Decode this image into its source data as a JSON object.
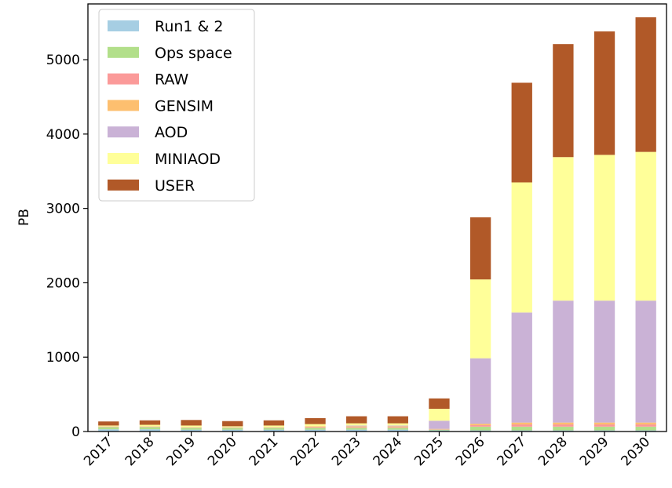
{
  "chart_data": {
    "type": "bar",
    "stacked": true,
    "title": "",
    "xlabel": "",
    "ylabel": "PB",
    "ylim": [
      0,
      5750
    ],
    "yticks": [
      0,
      1000,
      2000,
      3000,
      4000,
      5000
    ],
    "grid": false,
    "legend_position": "top-left",
    "categories": [
      "2017",
      "2018",
      "2019",
      "2020",
      "2021",
      "2022",
      "2023",
      "2024",
      "2025",
      "2026",
      "2027",
      "2028",
      "2029",
      "2030"
    ],
    "series": [
      {
        "name": "Run1 & 2",
        "color": "#a6cee3",
        "values": [
          30,
          30,
          25,
          25,
          25,
          25,
          25,
          25,
          15,
          15,
          15,
          15,
          15,
          15
        ]
      },
      {
        "name": "Ops space",
        "color": "#b2df8a",
        "values": [
          30,
          30,
          25,
          25,
          25,
          25,
          25,
          25,
          10,
          50,
          50,
          50,
          50,
          50
        ]
      },
      {
        "name": "RAW",
        "color": "#fb9a99",
        "values": [
          5,
          5,
          5,
          5,
          5,
          10,
          10,
          10,
          5,
          20,
          30,
          30,
          30,
          30
        ]
      },
      {
        "name": "GENSIM",
        "color": "#fdbf6f",
        "values": [
          5,
          5,
          5,
          5,
          5,
          10,
          10,
          10,
          5,
          20,
          25,
          25,
          25,
          25
        ]
      },
      {
        "name": "AOD",
        "color": "#cab2d6",
        "values": [
          0,
          0,
          0,
          0,
          0,
          0,
          10,
          10,
          110,
          880,
          1480,
          1640,
          1640,
          1640
        ]
      },
      {
        "name": "MINIAOD",
        "color": "#ffff99",
        "values": [
          10,
          20,
          20,
          10,
          20,
          30,
          30,
          30,
          160,
          1060,
          1750,
          1930,
          1960,
          2000
        ]
      },
      {
        "name": "USER",
        "color": "#b15928",
        "values": [
          55,
          60,
          75,
          70,
          70,
          80,
          95,
          95,
          140,
          835,
          1340,
          1520,
          1660,
          1810
        ]
      }
    ]
  }
}
